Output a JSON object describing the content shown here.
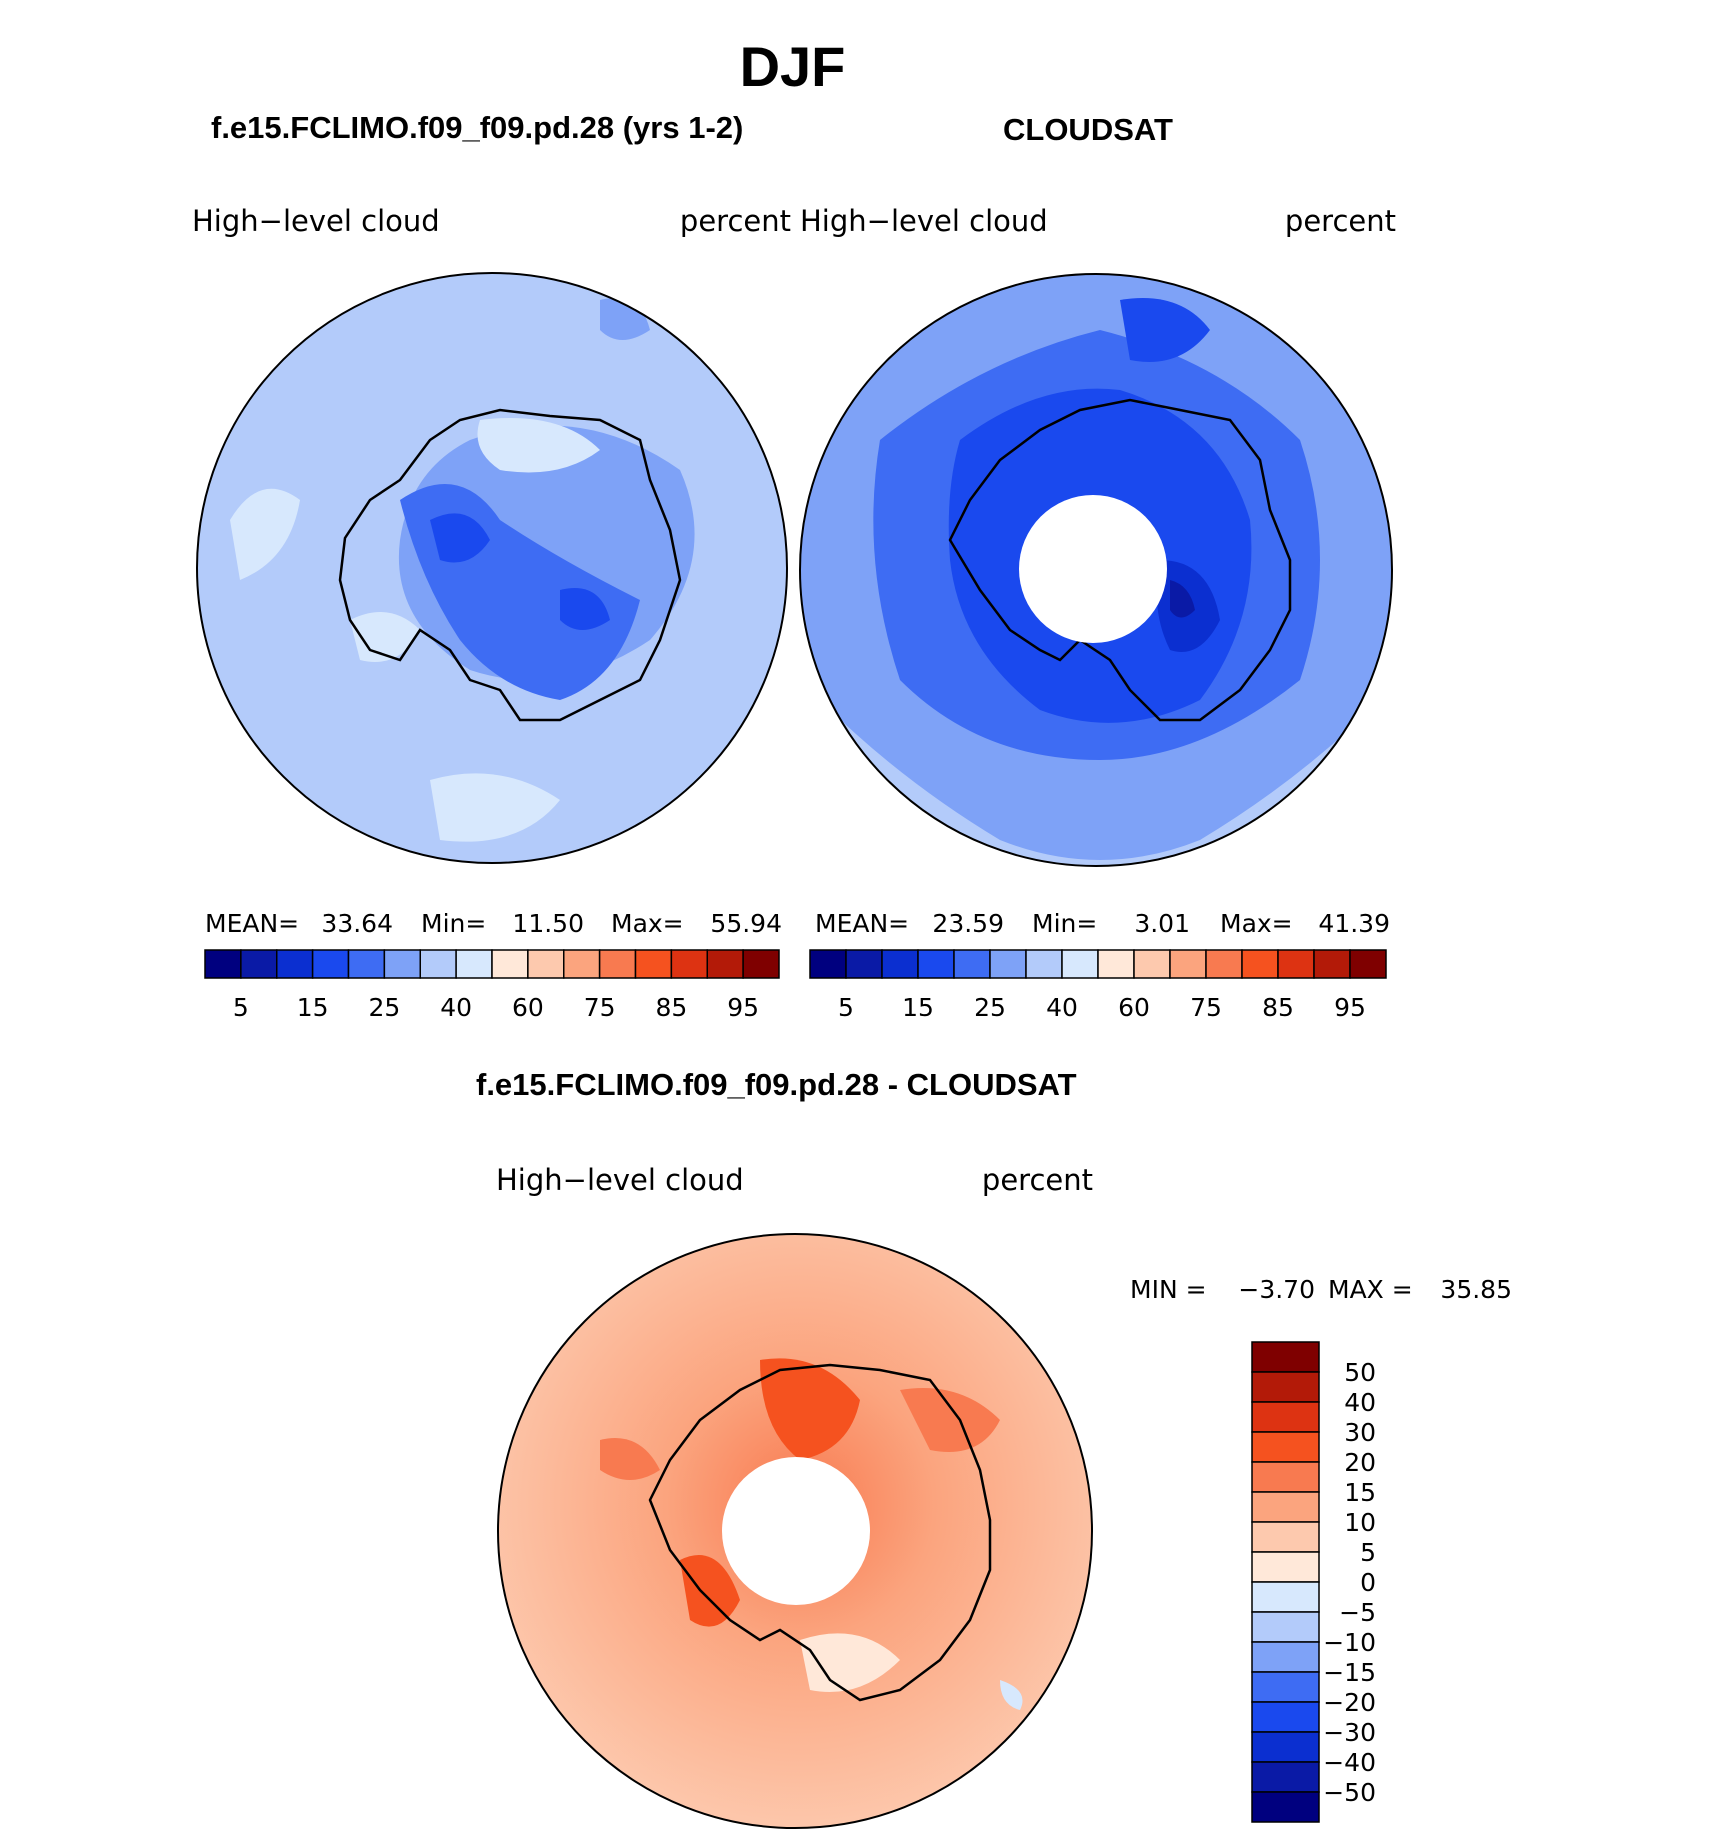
{
  "page": {
    "title": "DJF"
  },
  "chart_data": [
    {
      "type": "heatmap",
      "projection": "south-polar-stereographic",
      "title": "f.e15.FCLIMO.f09_f09.pd.28 (yrs 1-2)",
      "left_label": "High−level  cloud",
      "right_label": "percent",
      "stats": {
        "mean_label": "MEAN=",
        "mean": "33.64",
        "min_label": "Min=",
        "min": "11.50",
        "max_label": "Max=",
        "max": "55.94"
      },
      "colorbar": {
        "orientation": "horizontal",
        "tick_labels": [
          "5",
          "15",
          "25",
          "40",
          "60",
          "75",
          "85",
          "95"
        ],
        "colors": [
          "#00007f",
          "#0a1aa6",
          "#0b2fd0",
          "#1a49ee",
          "#3e6cf3",
          "#7ea2f7",
          "#b3cbfa",
          "#d7e8fd",
          "#ffe8d9",
          "#fdc9ae",
          "#fba47e",
          "#f87a50",
          "#f5521f",
          "#dd3312",
          "#b31a08",
          "#7f0000"
        ]
      }
    },
    {
      "type": "heatmap",
      "projection": "south-polar-stereographic",
      "title": "CLOUDSAT",
      "left_label": "High−level  cloud",
      "right_label": "percent",
      "stats": {
        "mean_label": "MEAN=",
        "mean": "23.59",
        "min_label": "Min=",
        "min": "3.01",
        "max_label": "Max=",
        "max": "41.39"
      },
      "colorbar": {
        "orientation": "horizontal",
        "tick_labels": [
          "5",
          "15",
          "25",
          "40",
          "60",
          "75",
          "85",
          "95"
        ],
        "colors": [
          "#00007f",
          "#0a1aa6",
          "#0b2fd0",
          "#1a49ee",
          "#3e6cf3",
          "#7ea2f7",
          "#b3cbfa",
          "#d7e8fd",
          "#ffe8d9",
          "#fdc9ae",
          "#fba47e",
          "#f87a50",
          "#f5521f",
          "#dd3312",
          "#b31a08",
          "#7f0000"
        ]
      }
    },
    {
      "type": "heatmap",
      "projection": "south-polar-stereographic",
      "title": "f.e15.FCLIMO.f09_f09.pd.28 - CLOUDSAT",
      "left_label": "High−level  cloud",
      "right_label": "percent",
      "stats": {
        "min_label": "MIN =",
        "min": "−3.70",
        "max_label": "MAX =",
        "max": "35.85"
      },
      "colorbar": {
        "orientation": "vertical",
        "tick_labels": [
          "50",
          "40",
          "30",
          "20",
          "15",
          "10",
          "5",
          "0",
          "−5",
          "−10",
          "−15",
          "−20",
          "−30",
          "−40",
          "−50"
        ],
        "colors_top_to_bottom": [
          "#7f0000",
          "#b31a08",
          "#dd3312",
          "#f5521f",
          "#f87a50",
          "#fba47e",
          "#fdc9ae",
          "#ffe8d9",
          "#d7e8fd",
          "#b3cbfa",
          "#7ea2f7",
          "#3e6cf3",
          "#1a49ee",
          "#0b2fd0",
          "#0a1aa6",
          "#00007f"
        ]
      }
    }
  ]
}
